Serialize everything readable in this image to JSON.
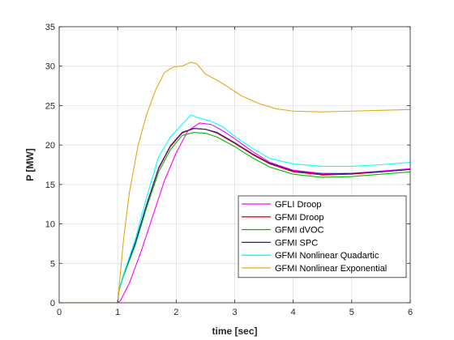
{
  "chart_data": {
    "type": "line",
    "xlabel": "time [sec]",
    "ylabel": "P [MW]",
    "xlim": [
      0,
      6
    ],
    "ylim": [
      0,
      35
    ],
    "xticks": [
      "0",
      "1",
      "2",
      "3",
      "4",
      "5",
      "6"
    ],
    "yticks": [
      "0",
      "5",
      "10",
      "15",
      "20",
      "25",
      "30",
      "35"
    ],
    "grid": true,
    "legend_position": "bottom-right",
    "series": [
      {
        "name": "GFLI Droop",
        "color": "#ff00ff",
        "points": [
          [
            0,
            0
          ],
          [
            1.0,
            0
          ],
          [
            1.05,
            0.3
          ],
          [
            1.2,
            2.5
          ],
          [
            1.4,
            6.5
          ],
          [
            1.6,
            11
          ],
          [
            1.8,
            15.5
          ],
          [
            2.0,
            19
          ],
          [
            2.2,
            21.8
          ],
          [
            2.4,
            22.8
          ],
          [
            2.6,
            22.6
          ],
          [
            2.8,
            21.8
          ],
          [
            3.0,
            20.8
          ],
          [
            3.3,
            19.2
          ],
          [
            3.6,
            17.8
          ],
          [
            4.0,
            16.8
          ],
          [
            4.5,
            16.4
          ],
          [
            5.0,
            16.4
          ],
          [
            5.5,
            16.7
          ],
          [
            6.0,
            17.0
          ]
        ]
      },
      {
        "name": "GFMI Droop",
        "color": "#ff0000",
        "points": [
          [
            0,
            0
          ],
          [
            1.0,
            0
          ],
          [
            1.02,
            1.5
          ],
          [
            1.1,
            3.5
          ],
          [
            1.3,
            7.5
          ],
          [
            1.5,
            12.5
          ],
          [
            1.7,
            17
          ],
          [
            1.9,
            19.8
          ],
          [
            2.1,
            21.5
          ],
          [
            2.3,
            22.1
          ],
          [
            2.5,
            22.0
          ],
          [
            2.7,
            21.5
          ],
          [
            3.0,
            20.2
          ],
          [
            3.3,
            18.8
          ],
          [
            3.6,
            17.6
          ],
          [
            4.0,
            16.6
          ],
          [
            4.5,
            16.2
          ],
          [
            5.0,
            16.3
          ],
          [
            5.5,
            16.6
          ],
          [
            6.0,
            16.9
          ]
        ]
      },
      {
        "name": "GFMI dVOC",
        "color": "#00bb00",
        "points": [
          [
            0,
            0
          ],
          [
            1.0,
            0
          ],
          [
            1.02,
            1.5
          ],
          [
            1.1,
            3.4
          ],
          [
            1.3,
            7.3
          ],
          [
            1.5,
            12.2
          ],
          [
            1.7,
            16.6
          ],
          [
            1.9,
            19.4
          ],
          [
            2.1,
            21.2
          ],
          [
            2.3,
            21.6
          ],
          [
            2.5,
            21.5
          ],
          [
            2.7,
            21.0
          ],
          [
            3.0,
            19.8
          ],
          [
            3.3,
            18.4
          ],
          [
            3.6,
            17.2
          ],
          [
            4.0,
            16.3
          ],
          [
            4.5,
            15.9
          ],
          [
            5.0,
            16.0
          ],
          [
            5.5,
            16.3
          ],
          [
            6.0,
            16.6
          ]
        ]
      },
      {
        "name": "GFMI SPC",
        "color": "#2a1a8f",
        "points": [
          [
            0,
            0
          ],
          [
            1.0,
            0
          ],
          [
            1.02,
            1.6
          ],
          [
            1.1,
            3.6
          ],
          [
            1.3,
            7.6
          ],
          [
            1.5,
            12.6
          ],
          [
            1.7,
            17.1
          ],
          [
            1.9,
            19.9
          ],
          [
            2.1,
            21.6
          ],
          [
            2.3,
            22.1
          ],
          [
            2.5,
            22.0
          ],
          [
            2.7,
            21.6
          ],
          [
            3.0,
            20.3
          ],
          [
            3.3,
            18.9
          ],
          [
            3.6,
            17.7
          ],
          [
            4.0,
            16.7
          ],
          [
            4.5,
            16.3
          ],
          [
            5.0,
            16.4
          ],
          [
            5.5,
            16.6
          ],
          [
            6.0,
            16.9
          ]
        ]
      },
      {
        "name": "GFMI Nonlinear Quadartic",
        "color": "#00ffff",
        "points": [
          [
            0,
            0
          ],
          [
            1.0,
            0
          ],
          [
            1.02,
            1.6
          ],
          [
            1.1,
            3.6
          ],
          [
            1.3,
            8.0
          ],
          [
            1.5,
            13.5
          ],
          [
            1.7,
            18.5
          ],
          [
            1.9,
            21.0
          ],
          [
            2.1,
            22.6
          ],
          [
            2.25,
            23.8
          ],
          [
            2.4,
            23.4
          ],
          [
            2.6,
            23.0
          ],
          [
            2.8,
            22.3
          ],
          [
            3.0,
            21.1
          ],
          [
            3.3,
            19.6
          ],
          [
            3.6,
            18.3
          ],
          [
            4.0,
            17.6
          ],
          [
            4.5,
            17.3
          ],
          [
            5.0,
            17.3
          ],
          [
            5.5,
            17.5
          ],
          [
            6.0,
            17.8
          ]
        ]
      },
      {
        "name": "GFMI Nonlinear Exponential",
        "color": "#e6a817",
        "points": [
          [
            0,
            0
          ],
          [
            1.0,
            0
          ],
          [
            1.03,
            2.5
          ],
          [
            1.1,
            8
          ],
          [
            1.2,
            14
          ],
          [
            1.35,
            20
          ],
          [
            1.5,
            24
          ],
          [
            1.65,
            27
          ],
          [
            1.8,
            29.2
          ],
          [
            1.95,
            29.9
          ],
          [
            2.1,
            30.0
          ],
          [
            2.25,
            30.5
          ],
          [
            2.35,
            30.3
          ],
          [
            2.5,
            29.0
          ],
          [
            2.7,
            28.2
          ],
          [
            2.9,
            27.3
          ],
          [
            3.1,
            26.3
          ],
          [
            3.4,
            25.3
          ],
          [
            3.7,
            24.6
          ],
          [
            4.0,
            24.3
          ],
          [
            4.5,
            24.2
          ],
          [
            5.0,
            24.3
          ],
          [
            5.5,
            24.4
          ],
          [
            6.0,
            24.5
          ]
        ]
      }
    ]
  }
}
